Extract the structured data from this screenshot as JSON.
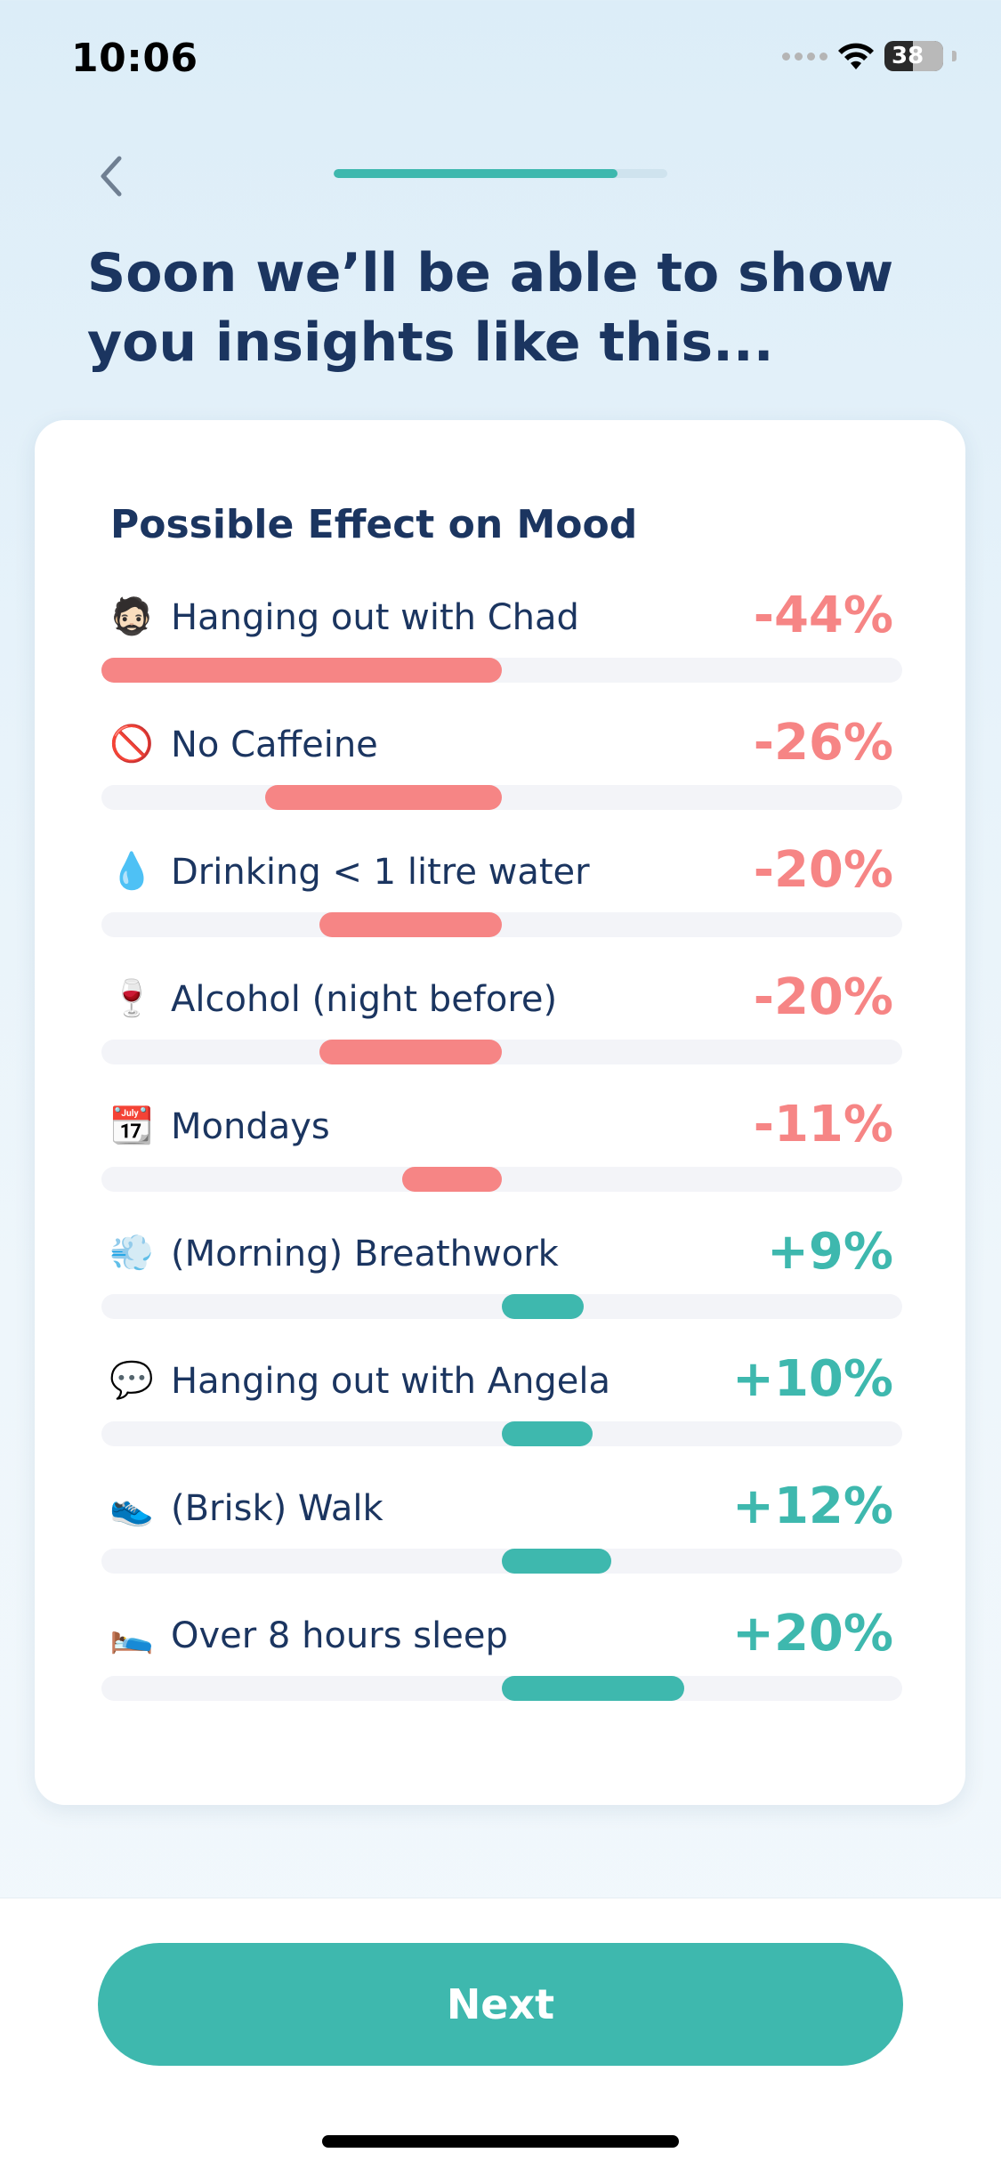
{
  "status_bar": {
    "time": "10:06",
    "battery": "38"
  },
  "header": {
    "progress_percent": 85
  },
  "headline": "Soon we’ll be able to show you insights like this...",
  "card": {
    "title": "Possible Effect on Mood",
    "colors": {
      "negative": "#f68585",
      "positive": "#3eb8ae",
      "track": "#f3f4f8"
    },
    "items": [
      {
        "emoji": "🧔🏻",
        "icon": "bearded-man-icon",
        "label": "Hanging out with Chad",
        "value": -44,
        "display": "-44%"
      },
      {
        "emoji": "🚫",
        "icon": "no-entry-icon",
        "label": "No Caffeine",
        "value": -26,
        "display": "-26%"
      },
      {
        "emoji": "💧",
        "icon": "droplet-icon",
        "label": "Drinking < 1 litre water",
        "value": -20,
        "display": "-20%"
      },
      {
        "emoji": "🍷",
        "icon": "wine-glass-icon",
        "label": "Alcohol (night before)",
        "value": -20,
        "display": "-20%"
      },
      {
        "emoji": "📆",
        "icon": "calendar-icon",
        "label": "Mondays",
        "value": -11,
        "display": "-11%"
      },
      {
        "emoji": "💨",
        "icon": "wind-icon",
        "label": "(Morning) Breathwork",
        "value": 9,
        "display": "+9%"
      },
      {
        "emoji": "💬",
        "icon": "speech-bubble-icon",
        "label": "Hanging out with Angela",
        "value": 10,
        "display": "+10%"
      },
      {
        "emoji": "👟",
        "icon": "sneaker-icon",
        "label": "(Brisk) Walk",
        "value": 12,
        "display": "+12%"
      },
      {
        "emoji": "🛌",
        "icon": "bed-icon",
        "label": "Over 8 hours sleep",
        "value": 20,
        "display": "+20%"
      }
    ]
  },
  "footer": {
    "next_label": "Next"
  }
}
